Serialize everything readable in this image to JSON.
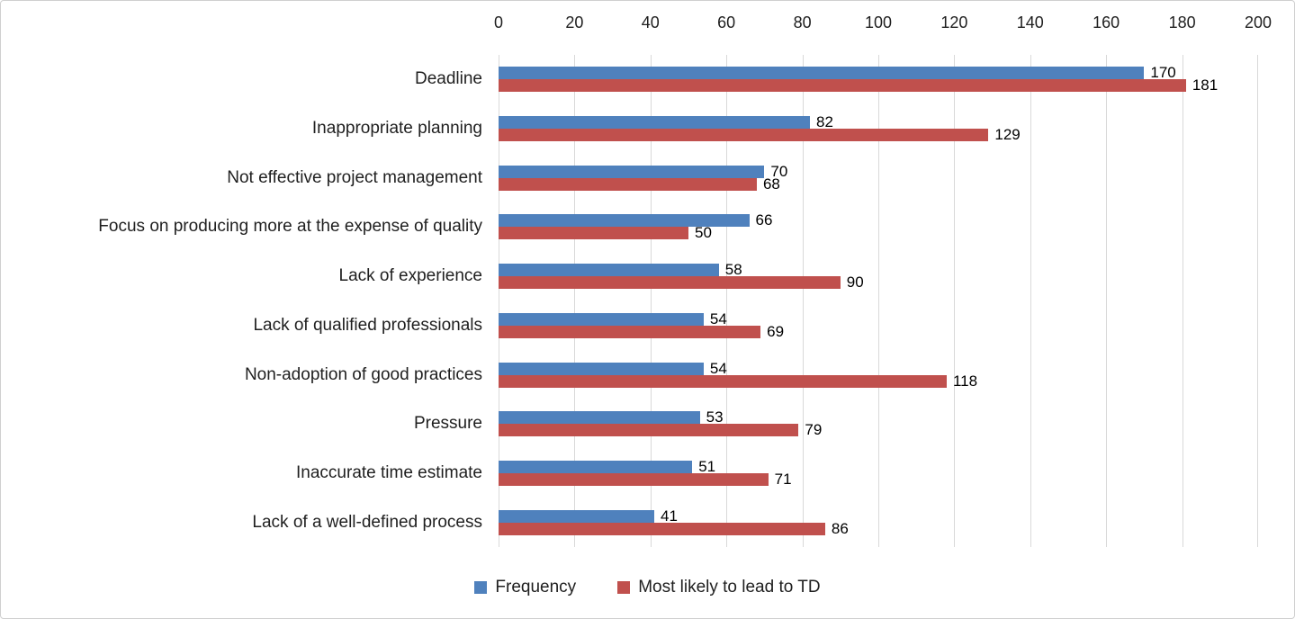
{
  "chart_data": {
    "type": "bar",
    "orientation": "horizontal",
    "title": "",
    "categories": [
      "Deadline",
      "Inappropriate planning",
      "Not effective project management",
      "Focus on producing more at the expense of quality",
      "Lack of experience",
      "Lack of qualified professionals",
      "Non-adoption of good practices",
      "Pressure",
      "Inaccurate time estimate",
      "Lack of a well-defined process"
    ],
    "series": [
      {
        "name": "Frequency",
        "color": "#4F81BD",
        "values": [
          170,
          82,
          70,
          66,
          58,
          54,
          54,
          53,
          51,
          41
        ]
      },
      {
        "name": "Most likely to lead to TD",
        "color": "#C0504D",
        "values": [
          181,
          129,
          68,
          50,
          90,
          69,
          118,
          79,
          71,
          86
        ]
      }
    ],
    "x_axis": {
      "position": "top",
      "min": 0,
      "max": 200,
      "step": 20,
      "ticks": [
        0,
        20,
        40,
        60,
        80,
        100,
        120,
        140,
        160,
        180,
        200
      ]
    },
    "grid": true,
    "gridline_color": "#d9d9d9",
    "data_labels": true,
    "legend": {
      "position": "bottom",
      "entries": [
        "Frequency",
        "Most likely to lead to TD"
      ]
    }
  }
}
